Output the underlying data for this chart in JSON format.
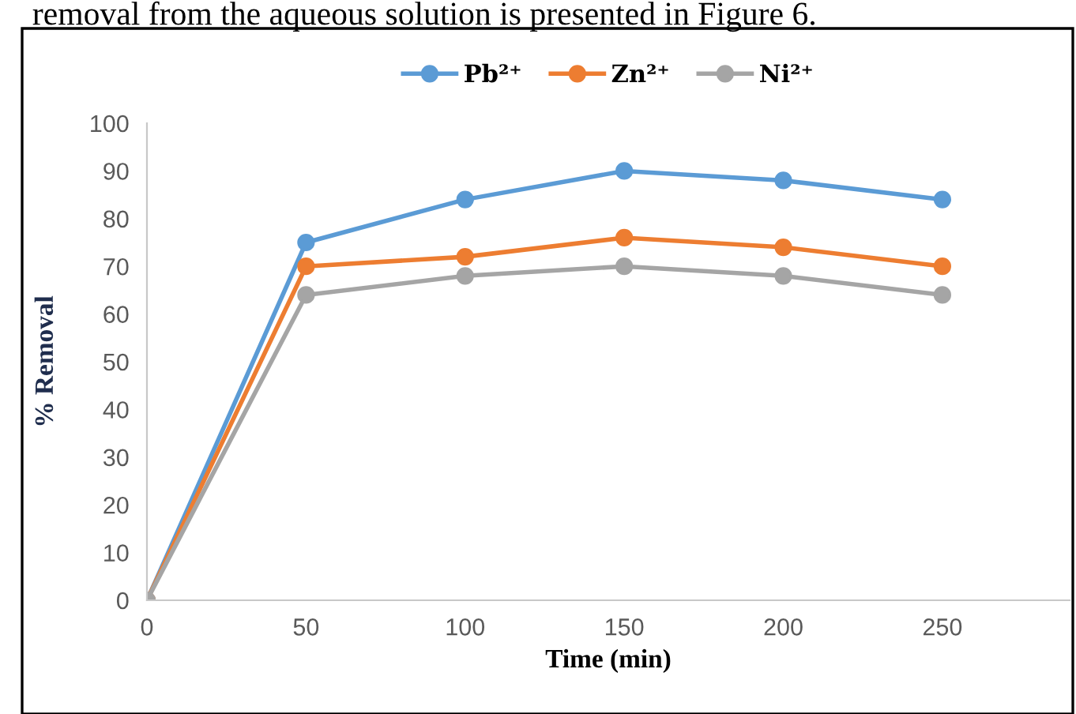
{
  "chart_data": {
    "type": "line",
    "xlabel": "Time (min)",
    "ylabel": "% Removal",
    "annotations": [
      "removal from the aqueous solution is presented in Figure 6."
    ],
    "x": [
      0,
      50,
      100,
      150,
      200,
      250
    ],
    "series": [
      {
        "name": "Pb²⁺",
        "color": "#5b9bd5",
        "values": [
          0,
          75,
          84,
          90,
          88,
          84
        ]
      },
      {
        "name": "Zn²⁺",
        "color": "#ed7d31",
        "values": [
          0,
          70,
          72,
          76,
          74,
          70
        ]
      },
      {
        "name": "Ni²⁺",
        "color": "#a5a5a5",
        "values": [
          0,
          64,
          68,
          70,
          68,
          64
        ]
      }
    ],
    "xlim": [
      0,
      290
    ],
    "ylim": [
      0,
      100
    ],
    "xticks": [
      0,
      50,
      100,
      150,
      200,
      250
    ],
    "yticks": [
      0,
      10,
      20,
      30,
      40,
      50,
      60,
      70,
      80,
      90,
      100
    ],
    "grid": false,
    "legend": "top",
    "marker": "circle",
    "line_style": "solid"
  }
}
